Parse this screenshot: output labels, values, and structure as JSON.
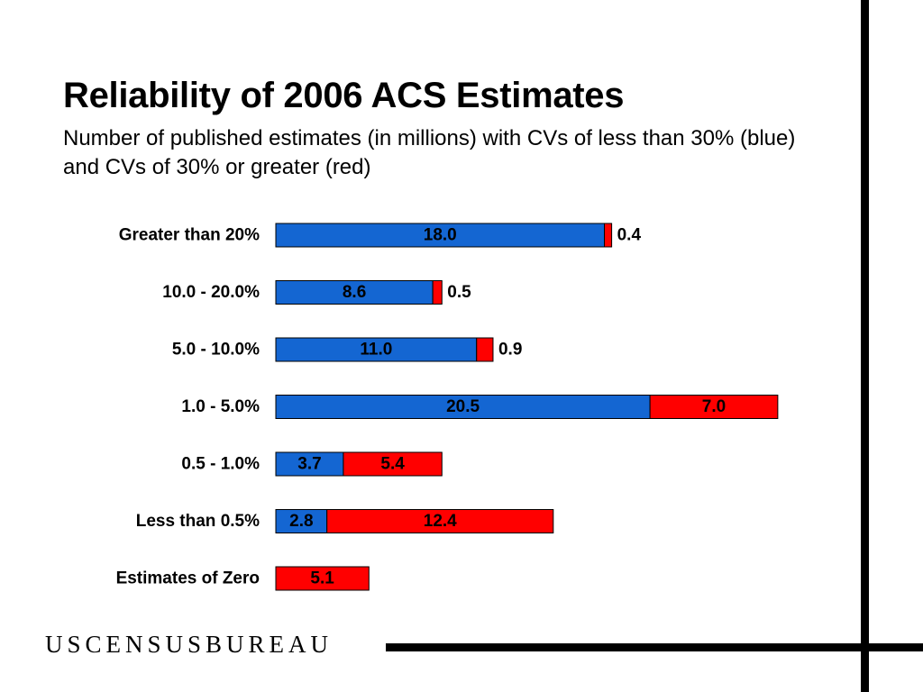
{
  "header": {
    "title": "Reliability of 2006 ACS Estimates",
    "subtitle": "Number of published estimates (in millions) with CVs of less than 30% (blue) and CVs of 30% or greater (red)"
  },
  "footer": {
    "logo_text": "USCENSUSBUREAU"
  },
  "colors": {
    "blue": "#1466D2",
    "red": "#FF0000",
    "outline": "#000000"
  },
  "chart_data": {
    "type": "bar",
    "orientation": "horizontal",
    "stacked": true,
    "categories": [
      "Greater than 20%",
      "10.0 - 20.0%",
      "5.0 - 10.0%",
      "1.0 - 5.0%",
      "0.5 - 1.0%",
      "Less than 0.5%",
      "Estimates of Zero"
    ],
    "series": [
      {
        "color": "blue",
        "values": [
          18.0,
          8.6,
          11.0,
          20.5,
          3.7,
          2.8,
          null
        ]
      },
      {
        "color": "red",
        "values": [
          0.4,
          0.5,
          0.9,
          7.0,
          5.4,
          12.4,
          5.1
        ]
      }
    ],
    "value_labels": {
      "blue": [
        "18.0",
        "8.6",
        "11.0",
        "20.5",
        "3.7",
        "2.8",
        ""
      ],
      "red": [
        "0.4",
        "0.5",
        "0.9",
        "7.0",
        "5.4",
        "12.4",
        "5.1"
      ]
    },
    "xlim": [
      0,
      27.5
    ],
    "grid": false,
    "legend": "none"
  }
}
